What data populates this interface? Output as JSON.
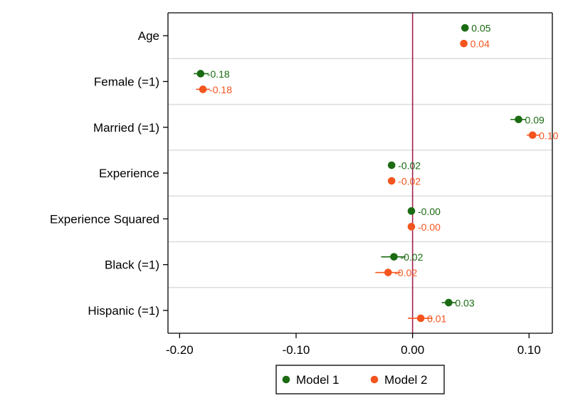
{
  "chart_data": {
    "type": "scatter",
    "subtype": "coefficient-plot",
    "categories": [
      "Age",
      "Female (=1)",
      "Married (=1)",
      "Experience",
      "Experience Squared",
      "Black (=1)",
      "Hispanic (=1)"
    ],
    "xlim": [
      -0.21,
      0.12
    ],
    "xticks": [
      -0.2,
      -0.1,
      0.0,
      0.1
    ],
    "xtick_labels": [
      "-0.20",
      "-0.10",
      "0.00",
      "0.10"
    ],
    "reference_line": {
      "x": 0.0,
      "color": "#a0224f"
    },
    "grid": "horizontal",
    "legend_position": "bottom-center",
    "series": [
      {
        "name": "Model 1",
        "color": "#1a6b12",
        "values": [
          0.045,
          -0.182,
          0.091,
          -0.018,
          -0.001,
          -0.016,
          0.031
        ],
        "ci_low": [
          0.045,
          -0.188,
          0.084,
          -0.019,
          -0.001,
          -0.027,
          0.025
        ],
        "ci_high": [
          0.045,
          -0.175,
          0.097,
          -0.017,
          -0.001,
          -0.006,
          0.037
        ],
        "labels": [
          "0.05",
          "-0.18",
          "0.09",
          "-0.02",
          "-0.00",
          "-0.02",
          "0.03"
        ]
      },
      {
        "name": "Model 2",
        "color": "#f4551e",
        "values": [
          0.044,
          -0.18,
          0.103,
          -0.018,
          -0.001,
          -0.021,
          0.007
        ],
        "ci_low": [
          0.044,
          -0.186,
          0.098,
          -0.019,
          -0.001,
          -0.032,
          -0.004
        ],
        "ci_high": [
          0.044,
          -0.174,
          0.109,
          -0.017,
          -0.001,
          -0.01,
          0.017
        ],
        "labels": [
          "0.04",
          "-0.18",
          "0.10",
          "-0.02",
          "-0.00",
          "-0.02",
          "0.01"
        ]
      }
    ]
  }
}
